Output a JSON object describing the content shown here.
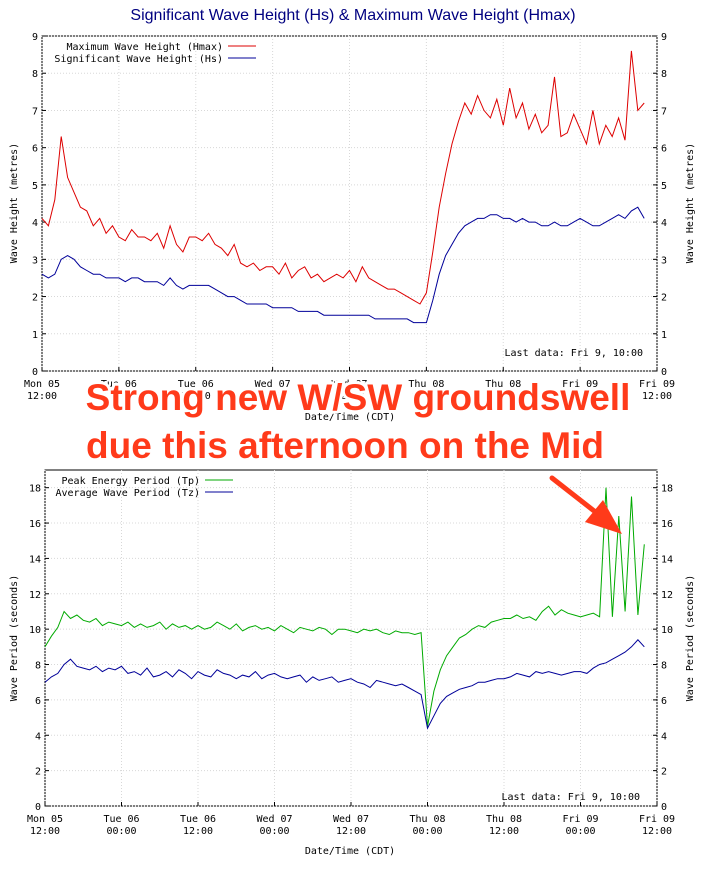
{
  "banner": {
    "line1": "Strong new W/SW groundswell",
    "line2": "due this afternoon on the Mid",
    "color": "#ff3a1a"
  },
  "colors": {
    "hmax": "#dd0000",
    "hs": "#000099",
    "tp": "#00aa00",
    "tz": "#000099",
    "title": "#000080"
  },
  "chart_data": [
    {
      "type": "line",
      "title": "Significant Wave Height (Hs) & Maximum Wave Height (Hmax)",
      "xlabel": "Date/Time (CDT)",
      "ylabel": "Wave Height (metres)",
      "ylim": [
        0,
        9
      ],
      "yticks": [
        "0",
        "1",
        "2",
        "3",
        "4",
        "5",
        "6",
        "7",
        "8",
        "9"
      ],
      "xlim": [
        0,
        96
      ],
      "xticks": [
        {
          "x": 0,
          "line1": "Mon 05",
          "line2": "12:00"
        },
        {
          "x": 12,
          "line1": "Tue 06",
          "line2": "00:00"
        },
        {
          "x": 24,
          "line1": "Tue 06",
          "line2": "12:00"
        },
        {
          "x": 36,
          "line1": "Wed 07",
          "line2": "00:00"
        },
        {
          "x": 48,
          "line1": "Wed 07",
          "line2": "12:00"
        },
        {
          "x": 60,
          "line1": "Thu 08",
          "line2": "00:00"
        },
        {
          "x": 72,
          "line1": "Thu 08",
          "line2": "12:00"
        },
        {
          "x": 84,
          "line1": "Fri 09",
          "line2": "00:00"
        },
        {
          "x": 96,
          "line1": "Fri 09",
          "line2": "12:00"
        }
      ],
      "grid": true,
      "legend_position": "top-left",
      "last_data": "Last data: Fri  9, 10:00",
      "series": [
        {
          "name": "Maximum Wave Height (Hmax)",
          "x": [
            0,
            1,
            2,
            3,
            4,
            5,
            6,
            7,
            8,
            9,
            10,
            11,
            12,
            13,
            14,
            15,
            16,
            17,
            18,
            19,
            20,
            21,
            22,
            23,
            24,
            25,
            26,
            27,
            28,
            29,
            30,
            31,
            32,
            33,
            34,
            35,
            36,
            37,
            38,
            39,
            40,
            41,
            42,
            43,
            44,
            45,
            46,
            47,
            48,
            49,
            50,
            51,
            52,
            53,
            54,
            55,
            56,
            57,
            58,
            59,
            60,
            61,
            62,
            63,
            64,
            65,
            66,
            67,
            68,
            69,
            70,
            71,
            72,
            73,
            74,
            75,
            76,
            77,
            78,
            79,
            80,
            81,
            82,
            83,
            84,
            85,
            86,
            87,
            88,
            89,
            90,
            91,
            92,
            93,
            94
          ],
          "values": [
            4.1,
            3.9,
            4.6,
            6.3,
            5.2,
            4.8,
            4.4,
            4.3,
            3.9,
            4.1,
            3.7,
            3.9,
            3.6,
            3.5,
            3.8,
            3.6,
            3.6,
            3.5,
            3.7,
            3.3,
            3.9,
            3.4,
            3.2,
            3.6,
            3.6,
            3.5,
            3.7,
            3.4,
            3.3,
            3.1,
            3.4,
            2.9,
            2.8,
            2.9,
            2.7,
            2.8,
            2.8,
            2.6,
            2.9,
            2.5,
            2.7,
            2.8,
            2.5,
            2.6,
            2.4,
            2.5,
            2.6,
            2.5,
            2.7,
            2.4,
            2.8,
            2.5,
            2.4,
            2.3,
            2.2,
            2.2,
            2.1,
            2.0,
            1.9,
            1.8,
            2.1,
            3.2,
            4.4,
            5.3,
            6.1,
            6.7,
            7.2,
            6.9,
            7.4,
            7.0,
            6.8,
            7.3,
            6.6,
            7.6,
            6.8,
            7.2,
            6.5,
            6.9,
            6.4,
            6.6,
            7.9,
            6.3,
            6.4,
            6.9,
            6.5,
            6.1,
            7.0,
            6.1,
            6.6,
            6.3,
            6.8,
            6.2,
            8.6,
            7.0,
            7.2
          ],
          "color": "#dd0000"
        },
        {
          "name": "Significant Wave Height (Hs)",
          "x": [
            0,
            1,
            2,
            3,
            4,
            5,
            6,
            7,
            8,
            9,
            10,
            11,
            12,
            13,
            14,
            15,
            16,
            17,
            18,
            19,
            20,
            21,
            22,
            23,
            24,
            25,
            26,
            27,
            28,
            29,
            30,
            31,
            32,
            33,
            34,
            35,
            36,
            37,
            38,
            39,
            40,
            41,
            42,
            43,
            44,
            45,
            46,
            47,
            48,
            49,
            50,
            51,
            52,
            53,
            54,
            55,
            56,
            57,
            58,
            59,
            60,
            61,
            62,
            63,
            64,
            65,
            66,
            67,
            68,
            69,
            70,
            71,
            72,
            73,
            74,
            75,
            76,
            77,
            78,
            79,
            80,
            81,
            82,
            83,
            84,
            85,
            86,
            87,
            88,
            89,
            90,
            91,
            92,
            93,
            94
          ],
          "values": [
            2.6,
            2.5,
            2.6,
            3.0,
            3.1,
            3.0,
            2.8,
            2.7,
            2.6,
            2.6,
            2.5,
            2.5,
            2.5,
            2.4,
            2.5,
            2.5,
            2.4,
            2.4,
            2.4,
            2.3,
            2.5,
            2.3,
            2.2,
            2.3,
            2.3,
            2.3,
            2.3,
            2.2,
            2.1,
            2.0,
            2.0,
            1.9,
            1.8,
            1.8,
            1.8,
            1.8,
            1.7,
            1.7,
            1.7,
            1.7,
            1.6,
            1.6,
            1.6,
            1.6,
            1.5,
            1.5,
            1.5,
            1.5,
            1.5,
            1.5,
            1.5,
            1.5,
            1.4,
            1.4,
            1.4,
            1.4,
            1.4,
            1.4,
            1.3,
            1.3,
            1.3,
            1.9,
            2.6,
            3.1,
            3.4,
            3.7,
            3.9,
            4.0,
            4.1,
            4.1,
            4.2,
            4.2,
            4.1,
            4.1,
            4.0,
            4.1,
            4.0,
            4.0,
            3.9,
            3.9,
            4.0,
            3.9,
            3.9,
            4.0,
            4.1,
            4.0,
            3.9,
            3.9,
            4.0,
            4.1,
            4.2,
            4.1,
            4.3,
            4.4,
            4.1
          ],
          "color": "#000099"
        }
      ]
    },
    {
      "type": "line",
      "title": "",
      "xlabel": "Date/Time (CDT)",
      "ylabel": "Wave Period (seconds)",
      "ylim": [
        0,
        19
      ],
      "yticks": [
        "0",
        "2",
        "4",
        "6",
        "8",
        "10",
        "12",
        "14",
        "16",
        "18"
      ],
      "xlim": [
        0,
        96
      ],
      "xticks": [
        {
          "x": 0,
          "line1": "Mon 05",
          "line2": "12:00"
        },
        {
          "x": 12,
          "line1": "Tue 06",
          "line2": "00:00"
        },
        {
          "x": 24,
          "line1": "Tue 06",
          "line2": "12:00"
        },
        {
          "x": 36,
          "line1": "Wed 07",
          "line2": "00:00"
        },
        {
          "x": 48,
          "line1": "Wed 07",
          "line2": "12:00"
        },
        {
          "x": 60,
          "line1": "Thu 08",
          "line2": "00:00"
        },
        {
          "x": 72,
          "line1": "Thu 08",
          "line2": "12:00"
        },
        {
          "x": 84,
          "line1": "Fri 09",
          "line2": "00:00"
        },
        {
          "x": 96,
          "line1": "Fri 09",
          "line2": "12:00"
        }
      ],
      "grid": true,
      "legend_position": "top-left",
      "last_data": "Last data: Fri  9, 10:00",
      "series": [
        {
          "name": "Peak Energy Period (Tp)",
          "x": [
            0,
            1,
            2,
            3,
            4,
            5,
            6,
            7,
            8,
            9,
            10,
            11,
            12,
            13,
            14,
            15,
            16,
            17,
            18,
            19,
            20,
            21,
            22,
            23,
            24,
            25,
            26,
            27,
            28,
            29,
            30,
            31,
            32,
            33,
            34,
            35,
            36,
            37,
            38,
            39,
            40,
            41,
            42,
            43,
            44,
            45,
            46,
            47,
            48,
            49,
            50,
            51,
            52,
            53,
            54,
            55,
            56,
            57,
            58,
            59,
            60,
            61,
            62,
            63,
            64,
            65,
            66,
            67,
            68,
            69,
            70,
            71,
            72,
            73,
            74,
            75,
            76,
            77,
            78,
            79,
            80,
            81,
            82,
            83,
            84,
            85,
            86,
            87,
            88,
            89,
            90,
            91,
            92,
            93,
            94
          ],
          "values": [
            9.0,
            9.6,
            10.1,
            11.0,
            10.6,
            10.8,
            10.5,
            10.4,
            10.6,
            10.2,
            10.4,
            10.3,
            10.2,
            10.4,
            10.1,
            10.3,
            10.1,
            10.2,
            10.4,
            10.0,
            10.3,
            10.1,
            10.2,
            10.0,
            10.2,
            10.0,
            10.1,
            10.4,
            10.2,
            10.0,
            10.3,
            9.9,
            10.1,
            10.2,
            10.0,
            10.1,
            9.9,
            10.2,
            10.0,
            9.8,
            10.1,
            10.0,
            9.9,
            10.1,
            10.0,
            9.7,
            10.0,
            10.0,
            9.9,
            9.8,
            10.0,
            9.9,
            10.0,
            9.8,
            9.7,
            9.9,
            9.8,
            9.8,
            9.7,
            9.8,
            4.5,
            6.5,
            7.7,
            8.5,
            9.0,
            9.5,
            9.7,
            10.0,
            10.2,
            10.1,
            10.4,
            10.5,
            10.6,
            10.6,
            10.8,
            10.6,
            10.7,
            10.5,
            11.0,
            11.3,
            10.8,
            11.1,
            10.9,
            10.8,
            10.7,
            10.8,
            10.9,
            10.7,
            18.0,
            10.7,
            16.4,
            11.0,
            17.5,
            10.8,
            14.8
          ],
          "color": "#00aa00"
        },
        {
          "name": "Average Wave Period (Tz)",
          "x": [
            0,
            1,
            2,
            3,
            4,
            5,
            6,
            7,
            8,
            9,
            10,
            11,
            12,
            13,
            14,
            15,
            16,
            17,
            18,
            19,
            20,
            21,
            22,
            23,
            24,
            25,
            26,
            27,
            28,
            29,
            30,
            31,
            32,
            33,
            34,
            35,
            36,
            37,
            38,
            39,
            40,
            41,
            42,
            43,
            44,
            45,
            46,
            47,
            48,
            49,
            50,
            51,
            52,
            53,
            54,
            55,
            56,
            57,
            58,
            59,
            60,
            61,
            62,
            63,
            64,
            65,
            66,
            67,
            68,
            69,
            70,
            71,
            72,
            73,
            74,
            75,
            76,
            77,
            78,
            79,
            80,
            81,
            82,
            83,
            84,
            85,
            86,
            87,
            88,
            89,
            90,
            91,
            92,
            93,
            94
          ],
          "values": [
            7.0,
            7.3,
            7.5,
            8.0,
            8.3,
            7.9,
            7.8,
            7.7,
            7.9,
            7.6,
            7.8,
            7.7,
            7.9,
            7.5,
            7.6,
            7.4,
            7.8,
            7.3,
            7.4,
            7.6,
            7.3,
            7.7,
            7.5,
            7.2,
            7.6,
            7.4,
            7.3,
            7.7,
            7.5,
            7.4,
            7.2,
            7.4,
            7.3,
            7.6,
            7.2,
            7.4,
            7.5,
            7.3,
            7.2,
            7.3,
            7.4,
            7.0,
            7.3,
            7.1,
            7.2,
            7.3,
            7.0,
            7.1,
            7.2,
            7.0,
            6.9,
            6.7,
            7.1,
            7.0,
            6.9,
            6.8,
            6.9,
            6.7,
            6.5,
            6.3,
            4.4,
            5.1,
            5.8,
            6.2,
            6.4,
            6.6,
            6.7,
            6.8,
            7.0,
            7.0,
            7.1,
            7.2,
            7.2,
            7.3,
            7.5,
            7.4,
            7.3,
            7.6,
            7.5,
            7.6,
            7.5,
            7.4,
            7.5,
            7.6,
            7.6,
            7.5,
            7.8,
            8.0,
            8.1,
            8.3,
            8.5,
            8.7,
            9.0,
            9.4,
            9.0
          ],
          "color": "#000099"
        }
      ]
    }
  ]
}
